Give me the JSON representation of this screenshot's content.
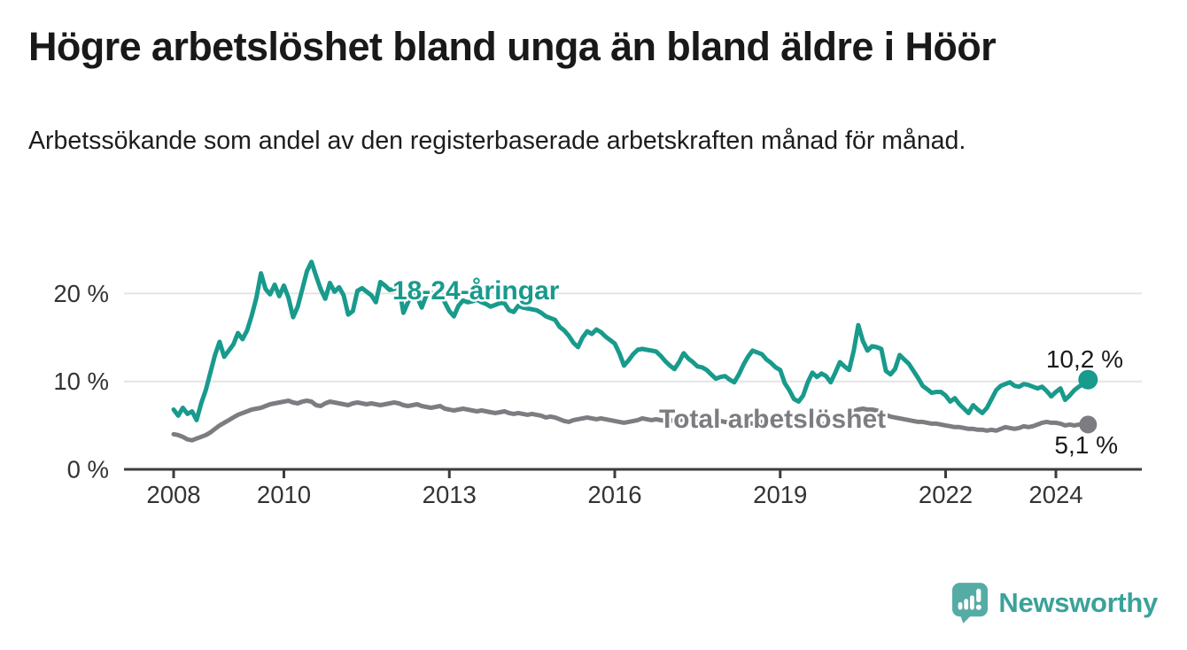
{
  "header": {
    "title": "Högre arbetslöshet bland unga än bland äldre i Höör",
    "subtitle": "Arbetssökande som andel av den registerbaserade arbetskraften månad för månad."
  },
  "chart_data": {
    "type": "line",
    "unit": "%",
    "frequency": "monthly",
    "x_start": "2008-01",
    "x_end": "2024-08",
    "grid": "horizontal",
    "legend_position": "inline-labels",
    "ylim": [
      0,
      25
    ],
    "x_ticks": [
      2008,
      2010,
      2013,
      2016,
      2019,
      2022,
      2024
    ],
    "y_ticks": [
      {
        "value": 0,
        "label": "0 %"
      },
      {
        "value": 10,
        "label": "10 %"
      },
      {
        "value": 20,
        "label": "20 %"
      }
    ],
    "series": [
      {
        "name": "18-24-åringar",
        "color": "#189a8c",
        "end_value": 10.2,
        "end_label": "10,2 %",
        "values": [
          6.8,
          6.1,
          7.0,
          6.3,
          6.6,
          5.6,
          7.5,
          9.0,
          11.0,
          13.0,
          14.5,
          12.8,
          13.5,
          14.2,
          15.5,
          14.8,
          15.8,
          17.5,
          19.5,
          22.3,
          20.5,
          19.9,
          21.0,
          19.7,
          20.9,
          19.5,
          17.3,
          18.5,
          20.5,
          22.5,
          23.6,
          22.0,
          20.5,
          19.4,
          21.2,
          20.2,
          20.7,
          19.8,
          17.6,
          18.0,
          20.3,
          20.6,
          20.2,
          19.8,
          19.0,
          21.3,
          20.9,
          20.4,
          20.5,
          21.0,
          17.8,
          19.0,
          20.3,
          19.6,
          18.4,
          19.8,
          20.1,
          19.7,
          20.0,
          19.0,
          18.0,
          17.4,
          18.6,
          19.2,
          19.0,
          19.1,
          19.3,
          19.0,
          18.8,
          18.5,
          18.7,
          18.9,
          18.9,
          18.1,
          17.9,
          18.6,
          18.4,
          18.3,
          18.2,
          18.1,
          17.8,
          17.4,
          17.2,
          17.0,
          16.2,
          15.8,
          15.2,
          14.4,
          13.9,
          15.0,
          15.7,
          15.4,
          15.9,
          15.6,
          15.1,
          14.7,
          14.3,
          13.2,
          11.8,
          12.4,
          13.1,
          13.6,
          13.7,
          13.6,
          13.5,
          13.4,
          12.9,
          12.3,
          11.8,
          11.4,
          12.2,
          13.2,
          12.6,
          12.2,
          11.7,
          11.6,
          11.3,
          10.8,
          10.3,
          10.5,
          10.6,
          10.2,
          9.9,
          10.8,
          11.9,
          12.8,
          13.5,
          13.3,
          13.1,
          12.5,
          12.1,
          11.6,
          11.3,
          9.8,
          9.0,
          8.0,
          7.7,
          8.4,
          9.9,
          11.0,
          10.5,
          10.9,
          10.6,
          9.9,
          11.0,
          12.2,
          11.7,
          11.3,
          13.5,
          16.4,
          14.6,
          13.5,
          14.0,
          13.9,
          13.7,
          11.2,
          10.8,
          11.4,
          13.0,
          12.5,
          12.0,
          11.2,
          10.4,
          9.5,
          9.1,
          8.7,
          8.8,
          8.8,
          8.4,
          7.7,
          8.1,
          7.4,
          6.9,
          6.4,
          7.3,
          6.8,
          6.4,
          7.0,
          8.0,
          9.0,
          9.5,
          9.7,
          9.9,
          9.5,
          9.4,
          9.7,
          9.6,
          9.4,
          9.2,
          9.4,
          8.9,
          8.3,
          8.8,
          9.2,
          7.9,
          8.4,
          9.0,
          9.4,
          9.7,
          10.2
        ]
      },
      {
        "name": "Total arbetslöshet",
        "color": "#7d7d81",
        "end_value": 5.1,
        "end_label": "5,1 %",
        "values": [
          4.0,
          3.9,
          3.7,
          3.4,
          3.3,
          3.5,
          3.7,
          3.9,
          4.2,
          4.6,
          5.0,
          5.3,
          5.6,
          5.9,
          6.2,
          6.4,
          6.6,
          6.8,
          6.9,
          7.0,
          7.2,
          7.4,
          7.5,
          7.6,
          7.7,
          7.8,
          7.6,
          7.5,
          7.7,
          7.8,
          7.7,
          7.3,
          7.2,
          7.5,
          7.7,
          7.6,
          7.5,
          7.4,
          7.3,
          7.5,
          7.6,
          7.5,
          7.4,
          7.5,
          7.4,
          7.3,
          7.4,
          7.5,
          7.6,
          7.5,
          7.3,
          7.2,
          7.3,
          7.4,
          7.2,
          7.1,
          7.0,
          7.1,
          7.2,
          6.9,
          6.8,
          6.7,
          6.8,
          6.9,
          6.8,
          6.7,
          6.6,
          6.7,
          6.6,
          6.5,
          6.4,
          6.5,
          6.6,
          6.4,
          6.3,
          6.4,
          6.3,
          6.2,
          6.3,
          6.2,
          6.1,
          5.9,
          6.0,
          5.9,
          5.7,
          5.5,
          5.4,
          5.6,
          5.7,
          5.8,
          5.9,
          5.8,
          5.7,
          5.8,
          5.7,
          5.6,
          5.5,
          5.4,
          5.3,
          5.4,
          5.5,
          5.6,
          5.8,
          5.7,
          5.6,
          5.7,
          5.6,
          5.5,
          5.6,
          5.5,
          5.6,
          5.7,
          5.6,
          5.5,
          5.4,
          5.5,
          5.6,
          5.5,
          5.4,
          5.5,
          5.4,
          5.3,
          5.4,
          5.5,
          5.4,
          5.3,
          5.2,
          5.3,
          5.4,
          5.3,
          5.2,
          5.1,
          5.0,
          5.1,
          5.2,
          5.1,
          5.0,
          5.1,
          5.2,
          5.3,
          5.2,
          5.1,
          5.2,
          5.3,
          5.4,
          5.5,
          5.8,
          6.2,
          6.6,
          6.8,
          6.9,
          6.8,
          6.8,
          6.7,
          6.5,
          6.2,
          6.0,
          5.9,
          5.8,
          5.7,
          5.6,
          5.5,
          5.4,
          5.4,
          5.3,
          5.2,
          5.2,
          5.1,
          5.0,
          4.9,
          4.8,
          4.8,
          4.7,
          4.6,
          4.6,
          4.5,
          4.5,
          4.4,
          4.5,
          4.4,
          4.6,
          4.8,
          4.7,
          4.6,
          4.7,
          4.9,
          4.8,
          4.9,
          5.1,
          5.3,
          5.4,
          5.3,
          5.3,
          5.2,
          5.0,
          5.1,
          5.0,
          5.1,
          5.0,
          5.1
        ]
      }
    ]
  },
  "branding": {
    "logo_text": "Newsworthy",
    "logo_mark_color": "#55aca4",
    "logo_text_color": "#3aa29a"
  }
}
